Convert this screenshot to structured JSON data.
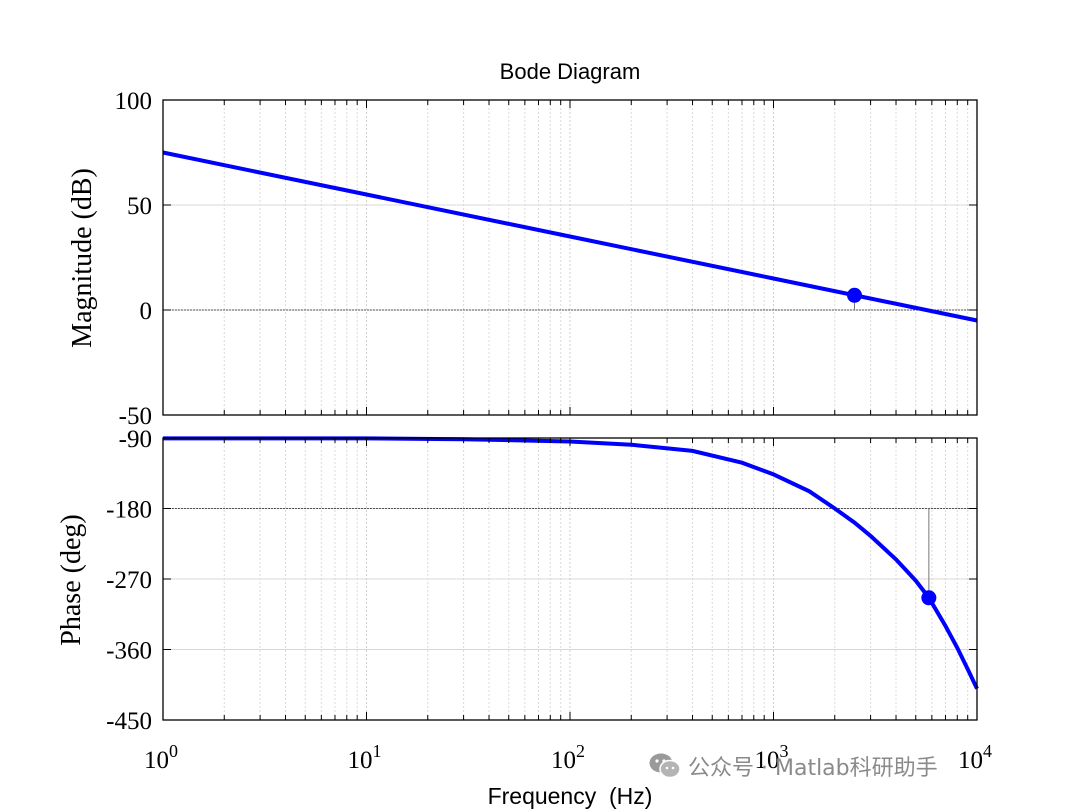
{
  "chart_data": {
    "type": "line",
    "title": "Bode Diagram",
    "xlabel": "Frequency  (Hz)",
    "xscale": "log",
    "xlim": [
      1,
      10000
    ],
    "x_ticks": [
      {
        "value": 1,
        "base": "10",
        "exp": "0"
      },
      {
        "value": 10,
        "base": "10",
        "exp": "1"
      },
      {
        "value": 100,
        "base": "10",
        "exp": "2"
      },
      {
        "value": 1000,
        "base": "10",
        "exp": "3"
      },
      {
        "value": 10000,
        "base": "10",
        "exp": "4"
      }
    ],
    "subplots": [
      {
        "name": "magnitude",
        "ylabel": "Magnitude (dB)",
        "ylim": [
          -50,
          100
        ],
        "yticks": [
          100,
          50,
          0,
          -50
        ],
        "ytick_labels": [
          "100",
          "50",
          "0",
          "-50"
        ],
        "reference_line": 0,
        "series": {
          "name": "Magnitude",
          "color": "#0000ff",
          "x": [
            1,
            10,
            100,
            1000,
            10000
          ],
          "y": [
            75,
            55,
            35,
            15,
            -5
          ]
        },
        "marker": {
          "x": 2500,
          "y": 7,
          "note": "gain margin point"
        }
      },
      {
        "name": "phase",
        "ylabel": "Phase (deg)",
        "ylim": [
          -450,
          -90
        ],
        "yticks": [
          -90,
          -180,
          -270,
          -360,
          -450
        ],
        "ytick_labels": [
          "-90",
          "-180",
          "-270",
          "-360",
          "-450"
        ],
        "reference_line": -180,
        "series": {
          "name": "Phase",
          "color": "#0000ff",
          "x": [
            1,
            10,
            30,
            100,
            200,
            400,
            700,
            1000,
            1500,
            2000,
            2500,
            3000,
            4000,
            5000,
            5800,
            7000,
            8000,
            9000,
            10000
          ],
          "y": [
            -90.5,
            -90.5,
            -91.5,
            -94.5,
            -98.5,
            -106.5,
            -121.5,
            -136.5,
            -158,
            -180,
            -198,
            -215,
            -245,
            -272,
            -294,
            -330,
            -358,
            -385,
            -410
          ]
        },
        "marker": {
          "x": 5800,
          "y": -294,
          "note": "phase margin point"
        }
      }
    ]
  },
  "watermark": {
    "text": "公众号 · Matlab科研助手",
    "icon": "wechat-icon",
    "color": "#8a8a8a"
  }
}
